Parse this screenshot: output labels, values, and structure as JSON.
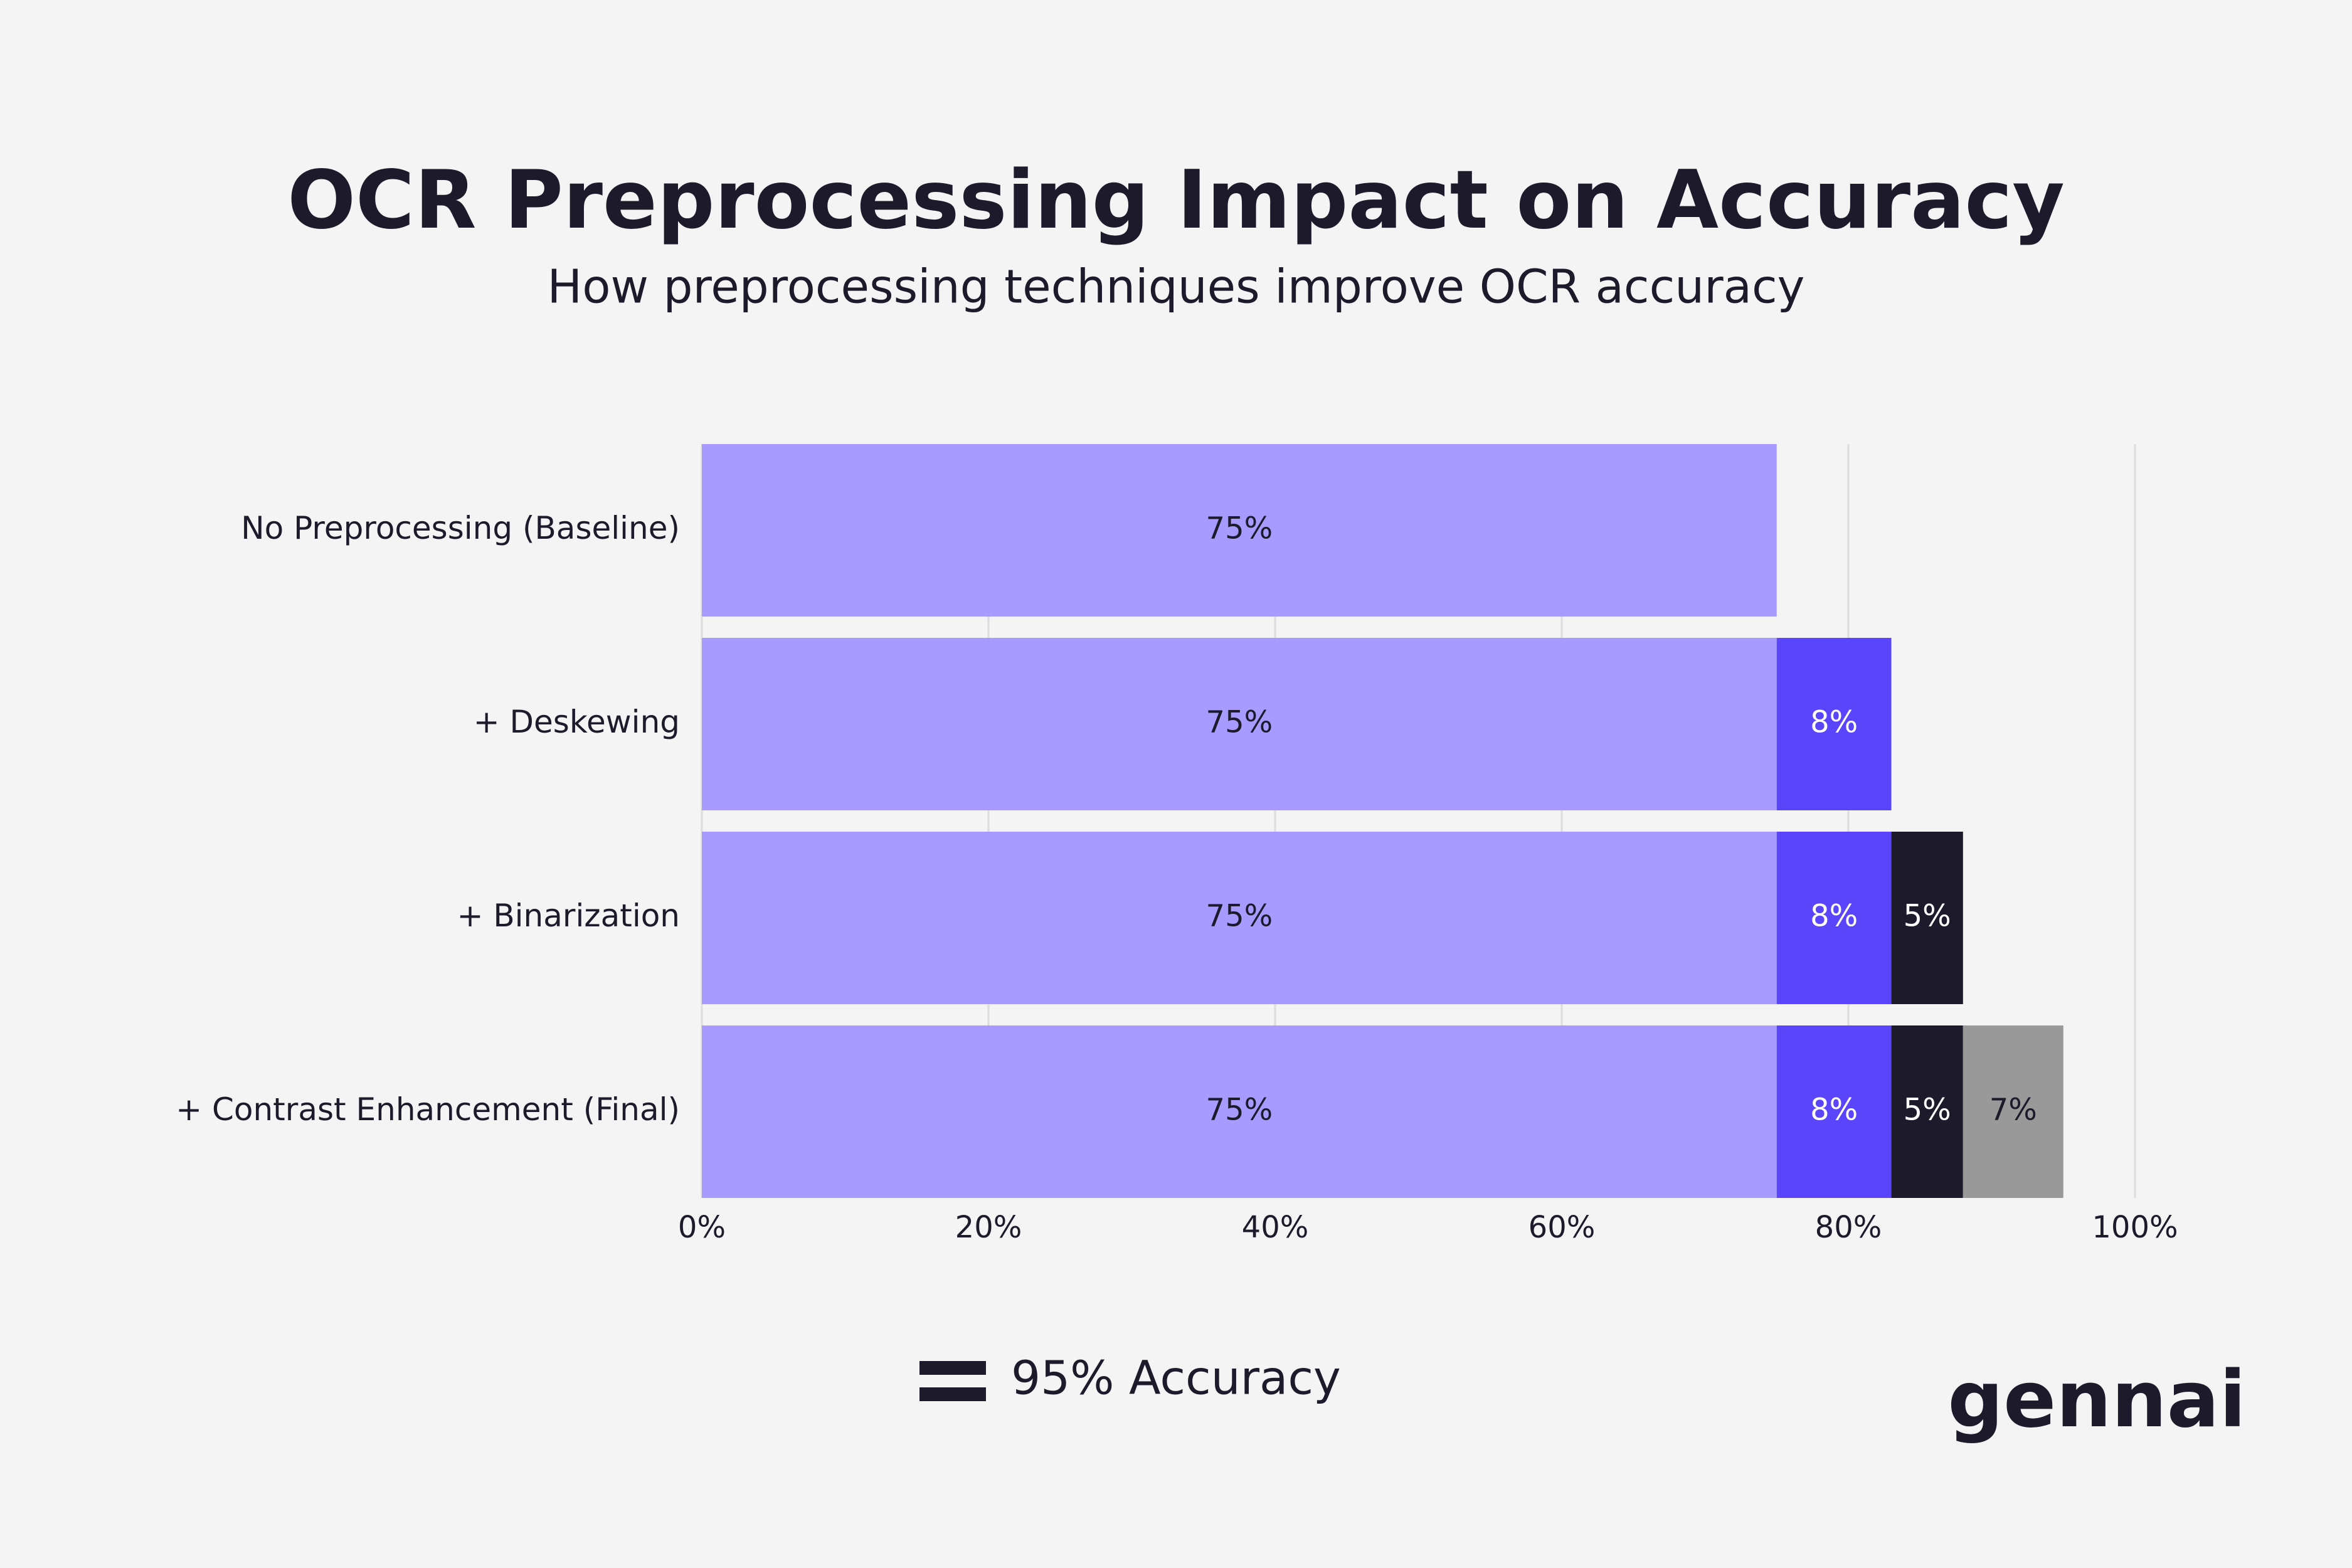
{
  "chart_data": {
    "type": "stacked_bar_horizontal",
    "title": "OCR Preprocessing Impact on Accuracy",
    "subtitle": "How preprocessing techniques improve OCR accuracy",
    "categories": [
      "No Preprocessing (Baseline)",
      "+ Deskewing",
      "+ Binarization",
      "+ Contrast Enhancement (Final)"
    ],
    "series": [
      {
        "color": "#a79bff",
        "values": [
          75,
          75,
          75,
          75
        ],
        "value_labels": [
          "75%",
          "75%",
          "75%",
          "75%"
        ]
      },
      {
        "color": "#5b45fb",
        "values": [
          null,
          8,
          8,
          8
        ],
        "value_labels": [
          null,
          "8%",
          "8%",
          "8%"
        ]
      },
      {
        "color": "#1c1a2b",
        "values": [
          null,
          null,
          5,
          5
        ],
        "value_labels": [
          null,
          null,
          "5%",
          "5%"
        ]
      },
      {
        "color": "#999999",
        "values": [
          null,
          null,
          null,
          7
        ],
        "value_labels": [
          null,
          null,
          null,
          "7%"
        ]
      }
    ],
    "xlim": [
      0,
      100
    ],
    "xticks": [
      {
        "value": 0,
        "label": "0%"
      },
      {
        "value": 20,
        "label": "20%"
      },
      {
        "value": 40,
        "label": "40%"
      },
      {
        "value": 60,
        "label": "60%"
      },
      {
        "value": 80,
        "label": "80%"
      },
      {
        "value": 100,
        "label": "100%"
      }
    ],
    "grid": true,
    "legend_label": "95% Accuracy",
    "logo": "gennai"
  }
}
